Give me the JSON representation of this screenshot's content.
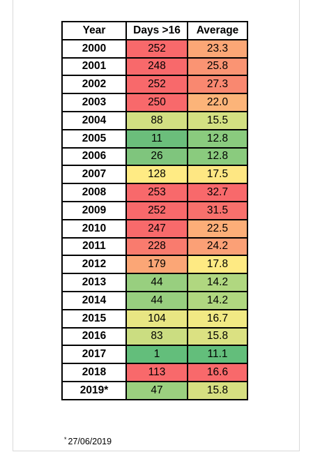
{
  "table": {
    "headers": [
      "Year",
      "Days >16",
      "Average"
    ],
    "rows": [
      {
        "year": "2000",
        "days": "252",
        "avg": "23.3",
        "days_color": "#f8696b",
        "avg_color": "#fba776"
      },
      {
        "year": "2001",
        "days": "248",
        "avg": "25.8",
        "days_color": "#f8696b",
        "avg_color": "#fa9473"
      },
      {
        "year": "2002",
        "days": "252",
        "avg": "27.3",
        "days_color": "#f8696b",
        "avg_color": "#f98870"
      },
      {
        "year": "2003",
        "days": "250",
        "avg": "22.0",
        "days_color": "#f8696b",
        "avg_color": "#fcb479"
      },
      {
        "year": "2004",
        "days": "88",
        "avg": "15.5",
        "days_color": "#d2df82",
        "avg_color": "#d3e082"
      },
      {
        "year": "2005",
        "days": "11",
        "avg": "12.8",
        "days_color": "#6bbe7b",
        "avg_color": "#8acb7e"
      },
      {
        "year": "2006",
        "days": "26",
        "avg": "12.8",
        "days_color": "#7fc57d",
        "avg_color": "#8acb7e"
      },
      {
        "year": "2007",
        "days": "128",
        "avg": "17.5",
        "days_color": "#ffeb84",
        "avg_color": "#fee783"
      },
      {
        "year": "2008",
        "days": "253",
        "avg": "32.7",
        "days_color": "#f8696b",
        "avg_color": "#f8696b"
      },
      {
        "year": "2009",
        "days": "252",
        "avg": "31.5",
        "days_color": "#f8696b",
        "avg_color": "#f8706c"
      },
      {
        "year": "2010",
        "days": "247",
        "avg": "22.5",
        "days_color": "#f86a6b",
        "avg_color": "#fcae78"
      },
      {
        "year": "2011",
        "days": "228",
        "avg": "24.2",
        "days_color": "#f97b6e",
        "avg_color": "#fba076"
      },
      {
        "year": "2012",
        "days": "179",
        "avg": "17.8",
        "days_color": "#fba676",
        "avg_color": "#feea83"
      },
      {
        "year": "2013",
        "days": "44",
        "avg": "14.2",
        "days_color": "#98cf7f",
        "avg_color": "#b0d780"
      },
      {
        "year": "2014",
        "days": "44",
        "avg": "14.2",
        "days_color": "#98cf7f",
        "avg_color": "#b0d780"
      },
      {
        "year": "2015",
        "days": "104",
        "avg": "16.7",
        "days_color": "#e8e683",
        "avg_color": "#f1e984"
      },
      {
        "year": "2016",
        "days": "83",
        "avg": "15.8",
        "days_color": "#cbdd81",
        "avg_color": "#dbe182"
      },
      {
        "year": "2017",
        "days": "1",
        "avg": "11.1",
        "days_color": "#63be7b",
        "avg_color": "#63be7b"
      },
      {
        "year": "2018",
        "days": "113",
        "avg": "16.6",
        "days_color": "#f8696b",
        "avg_color": "#f8696b"
      },
      {
        "year": "2019*",
        "days": "47",
        "avg": "15.8",
        "days_color": "#9bd07f",
        "avg_color": "#d6df81"
      }
    ]
  },
  "footnote": {
    "marker": "*",
    "text": "27/06/2019"
  }
}
